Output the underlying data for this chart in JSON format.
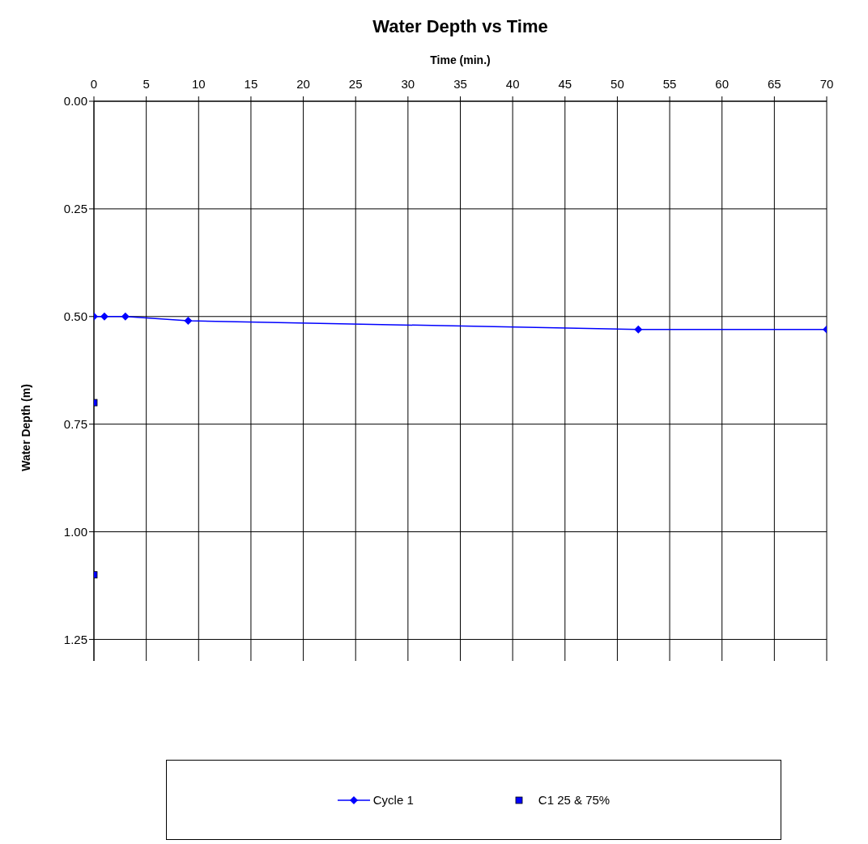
{
  "chart_data": {
    "type": "line",
    "title": "Water Depth vs Time",
    "xlabel": "Time (min.)",
    "ylabel": "Water Depth (m)",
    "series": [
      {
        "name": "Cycle 1",
        "color": "#0000ff",
        "marker": "diamond",
        "x": [
          0,
          1,
          3,
          9,
          52,
          70
        ],
        "values": [
          0.5,
          0.5,
          0.5,
          0.51,
          0.53,
          0.53
        ]
      },
      {
        "name": "C1 25 & 75%",
        "type": "scatter",
        "color": "#0000ff",
        "marker": "square",
        "x": [
          0,
          0
        ],
        "values": [
          0.7,
          1.1
        ]
      }
    ],
    "xlim": [
      0,
      70
    ],
    "xticks": [
      0,
      5,
      10,
      15,
      20,
      25,
      30,
      35,
      40,
      45,
      50,
      55,
      60,
      65,
      70
    ],
    "ylim": [
      1.3,
      0
    ],
    "yticks": [
      {
        "value": 0,
        "label": "0.00"
      },
      {
        "value": 0.25,
        "label": "0.25"
      },
      {
        "value": 0.5,
        "label": "0.50"
      },
      {
        "value": 0.75,
        "label": "0.75"
      },
      {
        "value": 1,
        "label": "1.00"
      },
      {
        "value": 1.25,
        "label": "1.25"
      }
    ],
    "grid": true,
    "legend": "bottom"
  }
}
